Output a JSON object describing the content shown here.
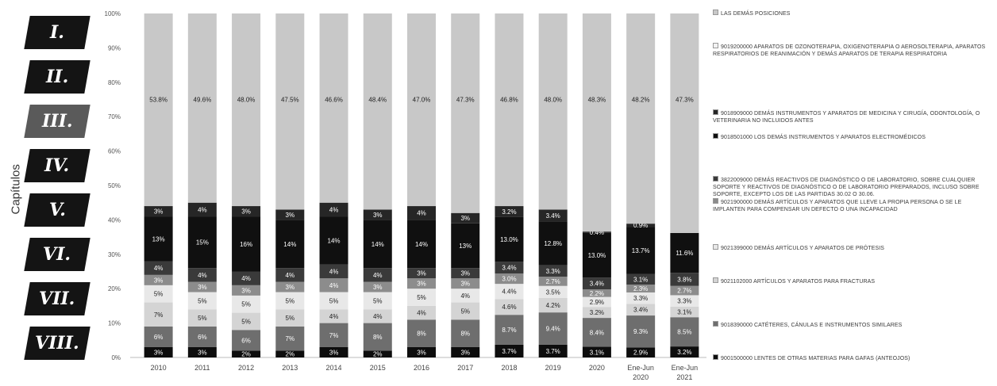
{
  "side_axis_label": "Capítulos",
  "chapters": [
    {
      "label": "I.",
      "color": "#141414"
    },
    {
      "label": "II.",
      "color": "#141414"
    },
    {
      "label": "III.",
      "color": "#5a5a5a"
    },
    {
      "label": "IV.",
      "color": "#141414"
    },
    {
      "label": "V.",
      "color": "#141414"
    },
    {
      "label": "VI.",
      "color": "#141414"
    },
    {
      "label": "VII.",
      "color": "#141414"
    },
    {
      "label": "VIII.",
      "color": "#141414"
    }
  ],
  "chart_data": {
    "type": "bar",
    "stacked": true,
    "ylim": [
      0,
      100
    ],
    "yticks": [
      "0%",
      "10%",
      "20%",
      "30%",
      "40%",
      "50%",
      "60%",
      "70%",
      "80%",
      "90%",
      "100%"
    ],
    "categories": [
      "2010",
      "2011",
      "2012",
      "2013",
      "2014",
      "2015",
      "2016",
      "2017",
      "2018",
      "2019",
      "2020",
      "Ene-Jun 2020",
      "Ene-Jun 2021"
    ],
    "series": [
      {
        "name": "9001500000 LENTES DE OTRAS MATERIAS PARA GAFAS (ANTEOJOS)",
        "color": "#0d0d0d",
        "label_color": "#ffffff",
        "values": [
          3,
          3,
          2,
          2,
          3,
          2,
          3,
          3,
          3.7,
          3.7,
          3.1,
          2.9,
          3.2
        ],
        "labels": [
          "3%",
          "3%",
          "2%",
          "2%",
          "3%",
          "2%",
          "3%",
          "3%",
          "3.7%",
          "3.7%",
          "3.1%",
          "2.9%",
          "3.2%"
        ]
      },
      {
        "name": "9018390000 CATÉTERES, CÁNULAS E INSTRUMENTOS SIMILARES",
        "color": "#6e6e6e",
        "label_color": "#ffffff",
        "values": [
          6,
          6,
          6,
          7,
          7,
          8,
          8,
          8,
          8.7,
          9.4,
          8.4,
          9.3,
          8.5
        ],
        "labels": [
          "6%",
          "6%",
          "6%",
          "7%",
          "7%",
          "8%",
          "8%",
          "8%",
          "8.7%",
          "9.4%",
          "8.4%",
          "9.3%",
          "8.5%"
        ]
      },
      {
        "name": "9021102000 ARTÍCULOS Y APARATOS PARA FRACTURAS",
        "color": "#d4d4d4",
        "label_color": "#222222",
        "values": [
          7,
          5,
          5,
          5,
          4,
          4,
          4,
          5,
          4.6,
          4.2,
          3.2,
          3.4,
          3.1
        ],
        "labels": [
          "7%",
          "5%",
          "5%",
          "5%",
          "4%",
          "4%",
          "4%",
          "5%",
          "4.6%",
          "4.2%",
          "3.2%",
          "3.4%",
          "3.1%"
        ]
      },
      {
        "name": "9021399000 DEMÁS ARTÍCULOS Y APARATOS DE PRÓTESIS",
        "color": "#e8e8e8",
        "label_color": "#222222",
        "values": [
          5,
          5,
          5,
          5,
          5,
          5,
          5,
          4,
          4.4,
          3.5,
          2.9,
          3.3,
          3.3
        ],
        "labels": [
          "5%",
          "5%",
          "5%",
          "5%",
          "5%",
          "5%",
          "5%",
          "4%",
          "4.4%",
          "3.5%",
          "2.9%",
          "3.3%",
          "3.3%"
        ]
      },
      {
        "name": "9021900000 DEMÁS ARTÍCULOS Y APARATOS QUE LLEVE LA PROPIA PERSONA O SE LE IMPLANTEN PARA COMPENSAR UN DEFECTO O UNA INCAPACIDAD",
        "color": "#8c8c8c",
        "label_color": "#ffffff",
        "values": [
          3,
          3,
          3,
          3,
          4,
          3,
          3,
          3,
          3.0,
          2.7,
          2.2,
          2.3,
          2.7
        ],
        "labels": [
          "3%",
          "3%",
          "3%",
          "3%",
          "4%",
          "3%",
          "3%",
          "3%",
          "3.0%",
          "2.7%",
          "2.2%",
          "2.3%",
          "2.7%"
        ]
      },
      {
        "name": "3822009000 DEMÁS REACTIVOS DE DIAGNÓSTICO O DE LABORATORIO, SOBRE CUALQUIER SOPORTE Y REACTIVOS DE DIAGNÓSTICO O DE LABORATORIO PREPARADOS, INCLUSO SOBRE SOPORTE, EXCEPTO LOS DE LAS PARTIDAS 30.02 O 30.06.",
        "color": "#3a3a3a",
        "label_color": "#ffffff",
        "values": [
          4,
          4,
          4,
          4,
          4,
          4,
          3,
          3,
          3.4,
          3.3,
          3.4,
          3.1,
          3.8
        ],
        "labels": [
          "4%",
          "4%",
          "4%",
          "4%",
          "4%",
          "4%",
          "3%",
          "3%",
          "3.4%",
          "3.3%",
          "3.4%",
          "3.1%",
          "3.8%"
        ]
      },
      {
        "name": "9018501000 LOS DEMÁS INSTRUMENTOS Y APARATOS ELECTROMÉDICOS",
        "color": "#101010",
        "label_color": "#ffffff",
        "values": [
          13,
          15,
          16,
          14,
          14,
          14,
          14,
          13,
          13.0,
          12.8,
          13.0,
          13.7,
          11.6
        ],
        "labels": [
          "13%",
          "15%",
          "16%",
          "14%",
          "14%",
          "14%",
          "14%",
          "13%",
          "13.0%",
          "12.8%",
          "13.0%",
          "13.7%",
          "11.6%"
        ]
      },
      {
        "name": "9018909000 DEMÁS INSTRUMENTOS Y APARATOS DE MEDICINA Y CIRUGÍA, ODONTOLOGÍA, O VETERINARIA NO INCLUIDOS ANTES",
        "color": "#262626",
        "label_color": "#ffffff",
        "values": [
          3,
          4,
          3,
          3,
          4,
          3,
          4,
          3,
          3.2,
          3.4,
          0.4,
          0.9,
          0
        ],
        "labels": [
          "3%",
          "4%",
          "3%",
          "3%",
          "4%",
          "3%",
          "4%",
          "3%",
          "3.2%",
          "3.4%",
          "0.4%",
          "0.9%",
          ""
        ]
      },
      {
        "name": "9019200000 APARATOS DE OZONOTERAPIA, OXIGENOTERAPIA O AEROSOLTERAPIA, APARATOS RESPIRATORIOS DE REANIMACIÓN Y DEMÁS APARATOS DE TERAPIA RESPIRATORIA",
        "color": "#f2f2f2",
        "label_color": "#222222",
        "values": [
          0,
          0,
          0,
          0,
          0,
          0,
          0,
          0,
          0,
          0,
          0,
          0,
          0
        ],
        "labels": [
          "",
          "",
          "",
          "",
          "",
          "",
          "",
          "",
          "",
          "",
          "",
          "",
          ""
        ]
      },
      {
        "name": "LAS DEMÁS POSICIONES",
        "color": "#c8c8c8",
        "label_color": "#222222",
        "values": [
          53.8,
          49.6,
          48.0,
          47.5,
          46.6,
          48.4,
          47.0,
          47.3,
          46.8,
          48.0,
          48.3,
          48.2,
          47.3
        ],
        "labels": [
          "53.8%",
          "49.6%",
          "48.0%",
          "47.5%",
          "46.6%",
          "48.4%",
          "47.0%",
          "47.3%",
          "46.8%",
          "48.0%",
          "48.3%",
          "48.2%",
          "47.3%"
        ]
      }
    ]
  }
}
